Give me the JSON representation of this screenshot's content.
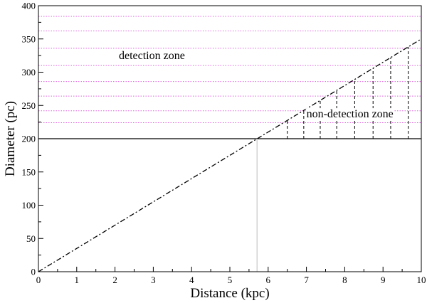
{
  "chart_data": {
    "type": "line",
    "xlabel": "Distance (kpc)",
    "ylabel": "Diameter (pc)",
    "xlim": [
      0,
      10
    ],
    "ylim": [
      0,
      400
    ],
    "x_ticks": [
      0,
      1,
      2,
      3,
      4,
      5,
      6,
      7,
      8,
      9,
      10
    ],
    "y_ticks": [
      0,
      50,
      100,
      150,
      200,
      250,
      300,
      350,
      400
    ],
    "grid": false,
    "series": [
      {
        "style": "dash-dot",
        "color": "#000000",
        "x": [
          0,
          10
        ],
        "y": [
          0,
          350
        ]
      },
      {
        "style": "solid",
        "color": "#000000",
        "x": [
          0,
          10
        ],
        "y": [
          200,
          200
        ]
      },
      {
        "style": "solid",
        "color": "#c8c8c8",
        "x": [
          5.71,
          5.71
        ],
        "y": [
          0,
          200
        ]
      }
    ],
    "detection_zone": {
      "label": "detection zone",
      "label_at": [
        2.1,
        320
      ],
      "color": "#e066e0",
      "levels": [
        224,
        242,
        264,
        286,
        310,
        336,
        362,
        384
      ]
    },
    "non_detection_zone": {
      "label": "non-detection zone",
      "label_at": [
        7.0,
        232
      ],
      "color": "#000000",
      "x_positions": [
        6.5,
        6.93,
        7.36,
        7.79,
        8.26,
        8.74,
        9.2,
        9.66
      ]
    }
  }
}
